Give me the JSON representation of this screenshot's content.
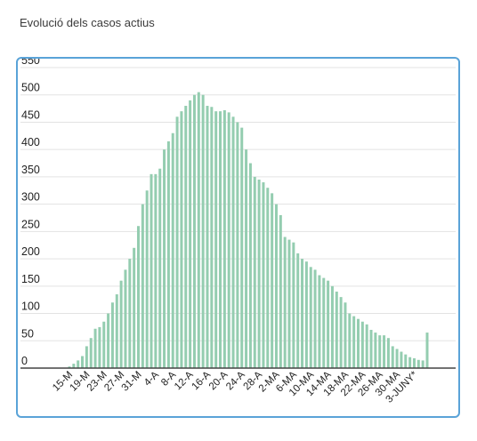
{
  "title": "Evolució dels casos actius",
  "chart_data": {
    "type": "bar",
    "title": "Evolució dels casos actius",
    "xlabel": "",
    "ylabel": "",
    "ylim": [
      0,
      550
    ],
    "yticks": [
      0,
      50,
      100,
      150,
      200,
      250,
      300,
      350,
      400,
      450,
      500,
      550
    ],
    "grid": true,
    "bar_color": "#94cdb0",
    "tick_labels": [
      "15-M",
      "19-M",
      "23-M",
      "27-M",
      "31-M",
      "4-A",
      "8-A",
      "12-A",
      "16-A",
      "20-A",
      "24-A",
      "28-A",
      "2-MA",
      "6-MA",
      "10-MA",
      "14-MA",
      "18-MA",
      "22-MA",
      "26-MA",
      "30-MA",
      "3-JUNY*"
    ],
    "tick_every": 4,
    "values": [
      3,
      8,
      14,
      22,
      40,
      55,
      72,
      75,
      85,
      100,
      120,
      135,
      160,
      180,
      200,
      220,
      260,
      300,
      325,
      355,
      355,
      365,
      400,
      415,
      430,
      460,
      470,
      480,
      490,
      500,
      505,
      500,
      480,
      478,
      470,
      470,
      472,
      468,
      460,
      450,
      440,
      400,
      375,
      350,
      345,
      340,
      330,
      320,
      300,
      280,
      240,
      235,
      230,
      210,
      200,
      195,
      185,
      180,
      170,
      165,
      160,
      150,
      140,
      130,
      120,
      100,
      95,
      90,
      85,
      80,
      70,
      65,
      60,
      60,
      55,
      40,
      35,
      30,
      25,
      20,
      18,
      15,
      14,
      65
    ]
  }
}
